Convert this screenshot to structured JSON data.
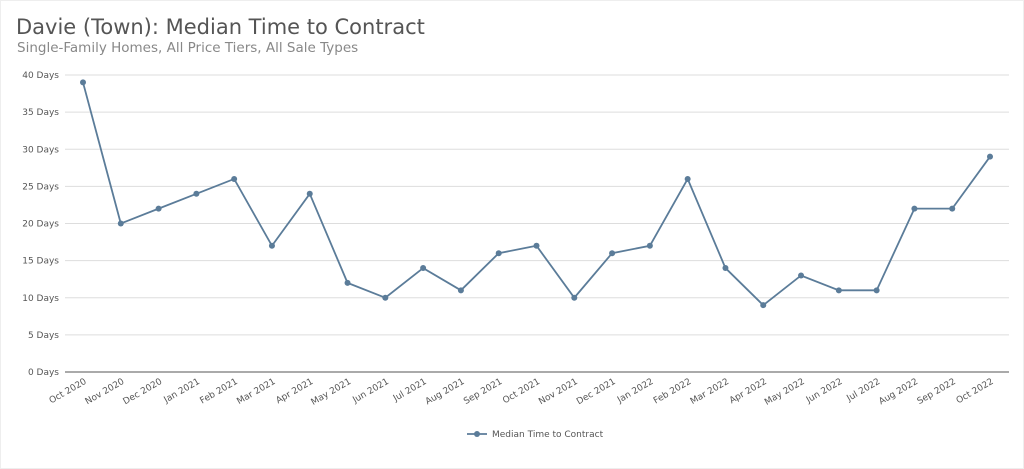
{
  "chart_data": {
    "type": "line",
    "title": "Davie (Town): Median Time to Contract",
    "subtitle": "Single-Family Homes, All Price Tiers, All Sale Types",
    "categories": [
      "Oct 2020",
      "Nov 2020",
      "Dec 2020",
      "Jan 2021",
      "Feb 2021",
      "Mar 2021",
      "Apr 2021",
      "May 2021",
      "Jun 2021",
      "Jul 2021",
      "Aug 2021",
      "Sep 2021",
      "Oct 2021",
      "Nov 2021",
      "Dec 2021",
      "Jan 2022",
      "Feb 2022",
      "Mar 2022",
      "Apr 2022",
      "May 2022",
      "Jun 2022",
      "Jul 2022",
      "Aug 2022",
      "Sep 2022",
      "Oct 2022"
    ],
    "series": [
      {
        "name": "Median Time to Contract",
        "color": "#5b7c99",
        "values": [
          39,
          20,
          22,
          24,
          26,
          17,
          24,
          12,
          10,
          14,
          11,
          16,
          17,
          10,
          16,
          17,
          26,
          14,
          9,
          13,
          11,
          11,
          22,
          22,
          29
        ]
      }
    ],
    "yticks": [
      "0 Days",
      "5 Days",
      "10 Days",
      "15 Days",
      "20 Days",
      "25 Days",
      "30 Days",
      "35 Days",
      "40 Days"
    ],
    "ylim": [
      0,
      40
    ],
    "grid": true,
    "legend": "bottom"
  }
}
